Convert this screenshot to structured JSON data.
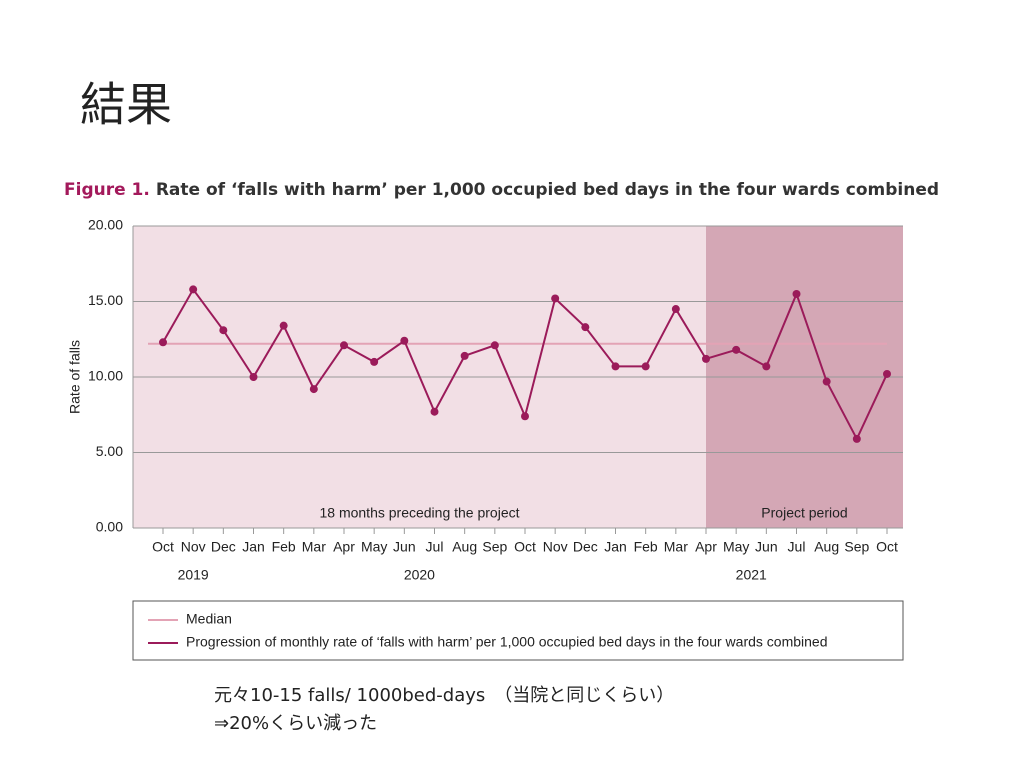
{
  "slide_title": "結果",
  "notes": [
    "元々10-15 falls/ 1000bed-days　（当院と同じくらい）",
    "⇒20%くらい減った"
  ],
  "chart_data": {
    "type": "line",
    "title_prefix": "Figure 1.",
    "title": "Rate of ‘falls with harm’ per 1,000 occupied bed days in the four wards combined",
    "y_label": "Rate of falls",
    "categories": [
      "Oct",
      "Nov",
      "Dec",
      "Jan",
      "Feb",
      "Mar",
      "Apr",
      "May",
      "Jun",
      "Jul",
      "Aug",
      "Sep",
      "Oct",
      "Nov",
      "Dec",
      "Jan",
      "Feb",
      "Mar",
      "Apr",
      "May",
      "Jun",
      "Jul",
      "Aug",
      "Sep",
      "Oct"
    ],
    "years": [
      "2019",
      "2020",
      "2021"
    ],
    "series": [
      {
        "name": "Progression of monthly rate of ‘falls with harm’ per 1,000 occupied bed days in the four wards combined",
        "color": "#9b1b5a",
        "values": [
          12.3,
          15.8,
          13.1,
          10.0,
          13.4,
          9.2,
          12.1,
          11.0,
          12.4,
          7.7,
          11.4,
          12.1,
          7.4,
          15.2,
          13.3,
          10.7,
          10.7,
          14.5,
          11.2,
          11.8,
          10.7,
          15.5,
          9.7,
          5.9,
          10.2
        ]
      }
    ],
    "median": {
      "name": "Median",
      "value": 12.2,
      "color": "#e3a3b5"
    },
    "periods": [
      {
        "label": "18 months preceding the project",
        "start": 0,
        "end": 18,
        "color": "#f2dfe5"
      },
      {
        "label": "Project period",
        "start": 18,
        "end": 24,
        "color": "#d4a7b5"
      }
    ],
    "ylim": [
      0,
      20
    ],
    "yticks": [
      {
        "value": 0,
        "label": "0.00"
      },
      {
        "value": 5,
        "label": "5.00"
      },
      {
        "value": 10,
        "label": "10.00"
      },
      {
        "value": 15,
        "label": "15.00"
      },
      {
        "value": 20,
        "label": "20.00"
      }
    ],
    "grid": true
  }
}
